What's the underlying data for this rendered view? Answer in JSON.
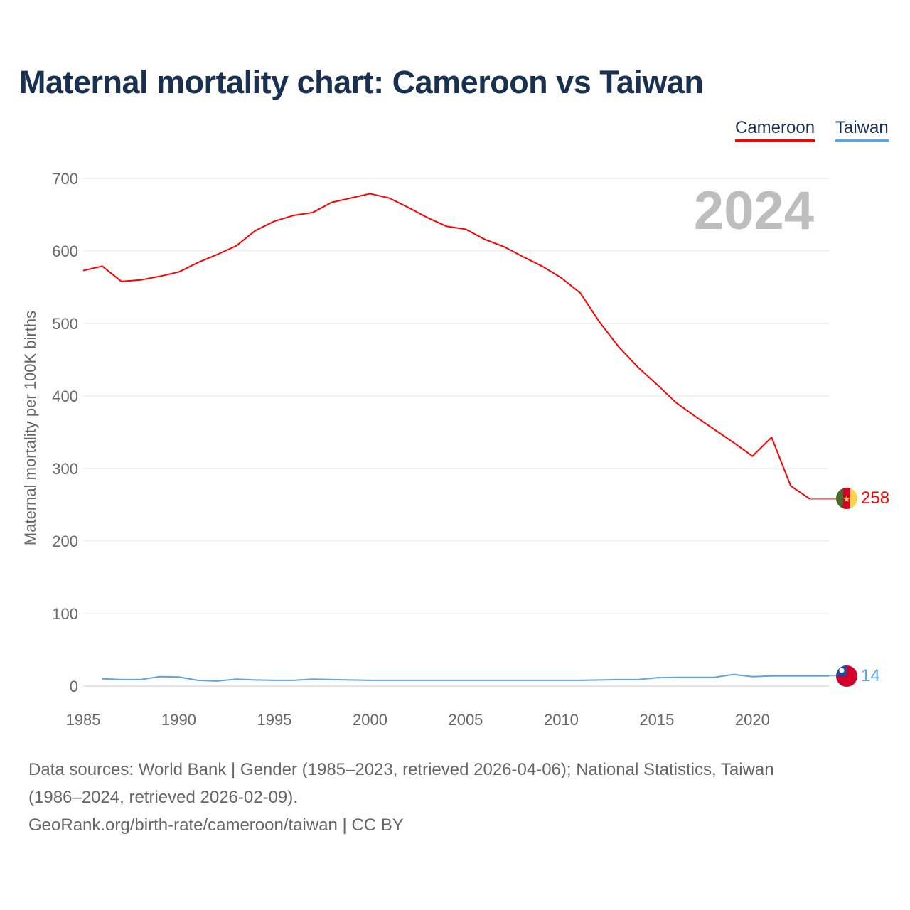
{
  "chart_data": {
    "type": "line",
    "title": "Maternal mortality chart: Cameroon vs Taiwan",
    "ylabel": "Maternal mortality per 100K births",
    "xlabel": "",
    "ylim": [
      0,
      700
    ],
    "xlim": [
      1985,
      2024
    ],
    "yticks": [
      0,
      100,
      200,
      300,
      400,
      500,
      600,
      700
    ],
    "xticks": [
      1985,
      1990,
      1995,
      2000,
      2005,
      2010,
      2015,
      2020
    ],
    "grid": true,
    "legend_position": "top-right",
    "year_watermark": "2024",
    "series": [
      {
        "name": "Cameroon",
        "color": "#ff0000",
        "end_label": "258",
        "x_start": 1985,
        "values": [
          573,
          579,
          558,
          560,
          565,
          571,
          584,
          595,
          607,
          628,
          641,
          649,
          653,
          667,
          673,
          679,
          673,
          660,
          646,
          634,
          630,
          616,
          606,
          592,
          579,
          563,
          542,
          502,
          468,
          440,
          416,
          391,
          372,
          354,
          336,
          317,
          343,
          276,
          258
        ]
      },
      {
        "name": "Taiwan",
        "color": "#5aa5ea",
        "end_label": "14",
        "x_start": 1986,
        "values": [
          10,
          9,
          9,
          13,
          12.5,
          8,
          7,
          9.5,
          8.5,
          8,
          8,
          9.5,
          9,
          8.5,
          8,
          8,
          8,
          8,
          8,
          8,
          8,
          8,
          8,
          8,
          8,
          8,
          8.5,
          9,
          9,
          11.5,
          12,
          12,
          12,
          16,
          13,
          14,
          14,
          14,
          14
        ]
      }
    ]
  },
  "footer": {
    "line1": "Data sources: World Bank | Gender (1985–2023, retrieved 2026-04-06); National Statistics, Taiwan",
    "line2": "(1986–2024, retrieved 2026-02-09).",
    "line3": "GeoRank.org/birth-rate/cameroon/taiwan | CC BY"
  }
}
